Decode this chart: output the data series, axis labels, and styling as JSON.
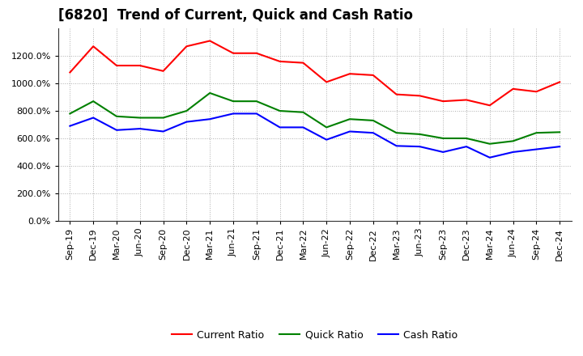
{
  "title": "[6820]  Trend of Current, Quick and Cash Ratio",
  "x_labels": [
    "Sep-19",
    "Dec-19",
    "Mar-20",
    "Jun-20",
    "Sep-20",
    "Dec-20",
    "Mar-21",
    "Jun-21",
    "Sep-21",
    "Dec-21",
    "Mar-22",
    "Jun-22",
    "Sep-22",
    "Dec-22",
    "Mar-23",
    "Jun-23",
    "Sep-23",
    "Dec-23",
    "Mar-24",
    "Jun-24",
    "Sep-24",
    "Dec-24"
  ],
  "current_ratio": [
    1080,
    1270,
    1130,
    1130,
    1090,
    1270,
    1310,
    1220,
    1220,
    1160,
    1150,
    1010,
    1070,
    1060,
    920,
    910,
    870,
    880,
    840,
    960,
    940,
    1010
  ],
  "quick_ratio": [
    780,
    870,
    760,
    750,
    750,
    800,
    930,
    870,
    870,
    800,
    790,
    680,
    740,
    730,
    640,
    630,
    600,
    600,
    560,
    580,
    640,
    645
  ],
  "cash_ratio": [
    690,
    750,
    660,
    670,
    650,
    720,
    740,
    780,
    780,
    680,
    680,
    590,
    650,
    640,
    545,
    540,
    500,
    540,
    460,
    500,
    520,
    540
  ],
  "current_color": "#FF0000",
  "quick_color": "#008000",
  "cash_color": "#0000FF",
  "line_width": 1.5,
  "ylim": [
    0,
    1400
  ],
  "yticks": [
    0,
    200,
    400,
    600,
    800,
    1000,
    1200
  ],
  "background_color": "#FFFFFF",
  "grid_color": "#999999",
  "title_fontsize": 12,
  "tick_fontsize": 8,
  "legend_fontsize": 9
}
